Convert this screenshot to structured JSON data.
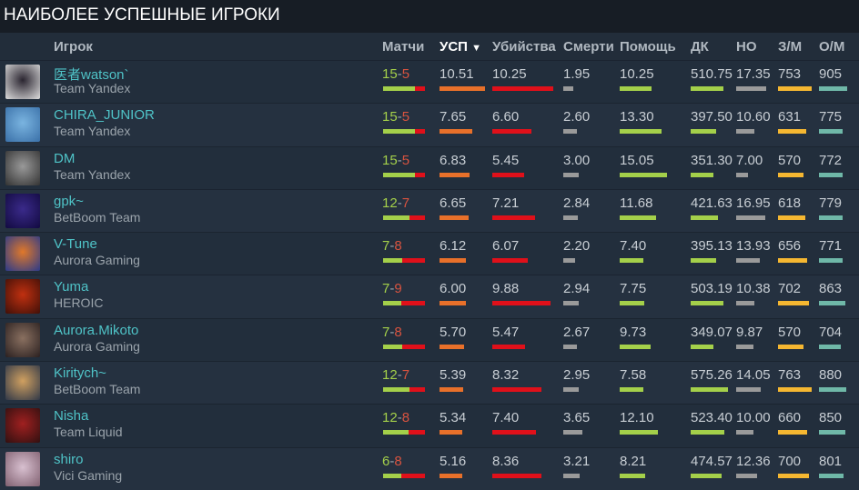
{
  "title": "НАИБОЛЕЕ УСПЕШНЫЕ ИГРОКИ",
  "columns": {
    "player": "Игрок",
    "matches": "Матчи",
    "kda": "УСП",
    "kills": "Убийства",
    "deaths": "Смерти",
    "assists": "Помощь",
    "dk": "ДК",
    "no": "НО",
    "gpm": "З/М",
    "xpm": "О/М"
  },
  "sort": {
    "column": "УСП",
    "direction": "descending",
    "icon": "triangle-down-icon"
  },
  "colors": {
    "wins": "#a4d04a",
    "losses": "#e0101a",
    "kda": "#e8702a",
    "kills": "#e0101a",
    "deaths": "#9a9a9a",
    "assists": "#a4d04a",
    "dk": "#a4d04a",
    "no": "#9a9a9a",
    "gpm": "#f5b731",
    "xpm": "#6fb8a8",
    "name": "#4fc3c7"
  },
  "players": [
    {
      "name": "医者watson`",
      "team": "Team Yandex",
      "w": "15",
      "l": "5",
      "kda": "10.51",
      "kills": "10.25",
      "deaths": "1.95",
      "assists": "10.25",
      "dk": "510.75",
      "no": "17.35",
      "gpm": "753",
      "xpm": "905"
    },
    {
      "name": "CHIRA_JUNIOR",
      "team": "Team Yandex",
      "w": "15",
      "l": "5",
      "kda": "7.65",
      "kills": "6.60",
      "deaths": "2.60",
      "assists": "13.30",
      "dk": "397.50",
      "no": "10.60",
      "gpm": "631",
      "xpm": "775"
    },
    {
      "name": "DM",
      "team": "Team Yandex",
      "w": "15",
      "l": "5",
      "kda": "6.83",
      "kills": "5.45",
      "deaths": "3.00",
      "assists": "15.05",
      "dk": "351.30",
      "no": "7.00",
      "gpm": "570",
      "xpm": "772"
    },
    {
      "name": "gpk~",
      "team": "BetBoom Team",
      "w": "12",
      "l": "7",
      "kda": "6.65",
      "kills": "7.21",
      "deaths": "2.84",
      "assists": "11.68",
      "dk": "421.63",
      "no": "16.95",
      "gpm": "618",
      "xpm": "779"
    },
    {
      "name": "V-Tune",
      "team": "Aurora Gaming",
      "w": "7",
      "l": "8",
      "kda": "6.12",
      "kills": "6.07",
      "deaths": "2.20",
      "assists": "7.40",
      "dk": "395.13",
      "no": "13.93",
      "gpm": "656",
      "xpm": "771"
    },
    {
      "name": "Yuma",
      "team": "HEROIC",
      "w": "7",
      "l": "9",
      "kda": "6.00",
      "kills": "9.88",
      "deaths": "2.94",
      "assists": "7.75",
      "dk": "503.19",
      "no": "10.38",
      "gpm": "702",
      "xpm": "863"
    },
    {
      "name": "Aurora.Mikoto",
      "team": "Aurora Gaming",
      "w": "7",
      "l": "8",
      "kda": "5.70",
      "kills": "5.47",
      "deaths": "2.67",
      "assists": "9.73",
      "dk": "349.07",
      "no": "9.87",
      "gpm": "570",
      "xpm": "704"
    },
    {
      "name": "Kiritych~",
      "team": "BetBoom Team",
      "w": "12",
      "l": "7",
      "kda": "5.39",
      "kills": "8.32",
      "deaths": "2.95",
      "assists": "7.58",
      "dk": "575.26",
      "no": "14.05",
      "gpm": "763",
      "xpm": "880"
    },
    {
      "name": "Nisha",
      "team": "Team Liquid",
      "w": "12",
      "l": "8",
      "kda": "5.34",
      "kills": "7.40",
      "deaths": "3.65",
      "assists": "12.10",
      "dk": "523.40",
      "no": "10.00",
      "gpm": "660",
      "xpm": "850"
    },
    {
      "name": "shiro",
      "team": "Vici Gaming",
      "w": "6",
      "l": "8",
      "kda": "5.16",
      "kills": "8.36",
      "deaths": "3.21",
      "assists": "8.21",
      "dk": "474.57",
      "no": "12.36",
      "gpm": "700",
      "xpm": "801"
    }
  ]
}
